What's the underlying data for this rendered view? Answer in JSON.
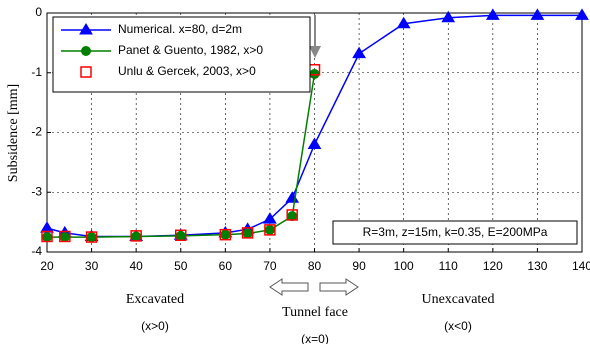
{
  "chart_data": {
    "type": "line",
    "ylabel": "Subsidence [mm]",
    "x": [
      20,
      24,
      30,
      40,
      50,
      60,
      65,
      70,
      75,
      80,
      90,
      100,
      110,
      120,
      130,
      140
    ],
    "series": [
      {
        "name": "Numerical. x=80, d=2m",
        "color": "#0000ff",
        "marker": "triangle",
        "line": true,
        "values": [
          -3.6,
          -3.68,
          -3.74,
          -3.74,
          -3.72,
          -3.68,
          -3.62,
          -3.45,
          -3.1,
          -2.2,
          -0.68,
          -0.18,
          -0.08,
          -0.04,
          -0.04,
          -0.04
        ]
      },
      {
        "name": "Panet & Guento, 1982, x>0",
        "color": "#008000",
        "marker": "circle",
        "line": true,
        "values": [
          -3.75,
          -3.75,
          -3.75,
          -3.74,
          -3.73,
          -3.71,
          -3.69,
          -3.63,
          -3.4,
          -1.02,
          null,
          null,
          null,
          null,
          null,
          null
        ]
      },
      {
        "name": "Unlu & Gercek, 2003, x>0",
        "color": "#ff0000",
        "marker": "square",
        "line": false,
        "values": [
          -3.74,
          -3.74,
          -3.75,
          -3.73,
          -3.72,
          -3.71,
          -3.68,
          -3.63,
          -3.38,
          -0.95,
          null,
          null,
          null,
          null,
          null,
          null
        ]
      }
    ],
    "xlim": [
      20,
      140
    ],
    "xticks": [
      20,
      30,
      40,
      50,
      60,
      70,
      80,
      90,
      100,
      110,
      120,
      130,
      140
    ],
    "ylim": [
      -4,
      0
    ],
    "yticks": [
      -4,
      -3,
      -2,
      -1,
      0
    ],
    "grid": true,
    "legend": "upper left",
    "annotations": [
      "R=3m, z=15m, k=0.35, E=200MPa",
      "Excavated",
      "(x>0)",
      "Tunnel face",
      "(x=0)",
      "Unexcavated",
      "(x<0)"
    ]
  }
}
